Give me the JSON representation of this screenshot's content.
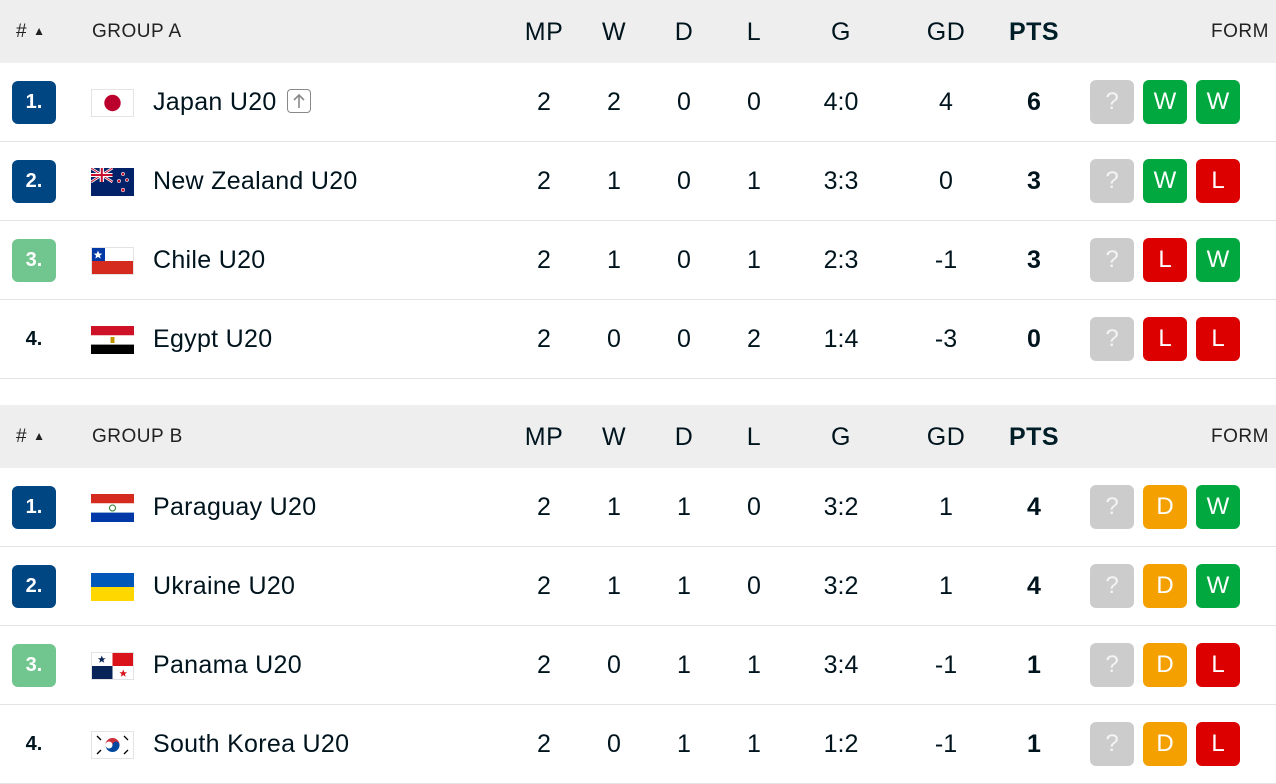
{
  "columns": {
    "rank": "#",
    "mp": "MP",
    "w": "W",
    "d": "D",
    "l": "L",
    "g": "G",
    "gd": "GD",
    "pts": "PTS",
    "form": "FORM"
  },
  "groups": [
    {
      "title": "GROUP A",
      "rows": [
        {
          "rank": "1.",
          "team": "Japan U20",
          "flag": "flag-japan",
          "mp": "2",
          "w": "2",
          "d": "0",
          "l": "0",
          "g": "4:0",
          "gd": "4",
          "pts": "6",
          "form": [
            "?",
            "W",
            "W"
          ],
          "rank_color": "#004682",
          "promoted_icon": "arrow-up-icon"
        },
        {
          "rank": "2.",
          "team": "New Zealand U20",
          "flag": "flag-new-zealand",
          "mp": "2",
          "w": "1",
          "d": "0",
          "l": "1",
          "g": "3:3",
          "gd": "0",
          "pts": "3",
          "form": [
            "?",
            "W",
            "L"
          ],
          "rank_color": "#004682"
        },
        {
          "rank": "3.",
          "team": "Chile U20",
          "flag": "flag-chile",
          "mp": "2",
          "w": "1",
          "d": "0",
          "l": "1",
          "g": "2:3",
          "gd": "-1",
          "pts": "3",
          "form": [
            "?",
            "L",
            "W"
          ],
          "rank_color": "#71c58f"
        },
        {
          "rank": "4.",
          "team": "Egypt U20",
          "flag": "flag-egypt",
          "mp": "2",
          "w": "0",
          "d": "0",
          "l": "2",
          "g": "1:4",
          "gd": "-3",
          "pts": "0",
          "form": [
            "?",
            "L",
            "L"
          ],
          "rank_color": ""
        }
      ]
    },
    {
      "title": "GROUP B",
      "rows": [
        {
          "rank": "1.",
          "team": "Paraguay U20",
          "flag": "flag-paraguay",
          "mp": "2",
          "w": "1",
          "d": "1",
          "l": "0",
          "g": "3:2",
          "gd": "1",
          "pts": "4",
          "form": [
            "?",
            "D",
            "W"
          ],
          "rank_color": "#004682"
        },
        {
          "rank": "2.",
          "team": "Ukraine U20",
          "flag": "flag-ukraine",
          "mp": "2",
          "w": "1",
          "d": "1",
          "l": "0",
          "g": "3:2",
          "gd": "1",
          "pts": "4",
          "form": [
            "?",
            "D",
            "W"
          ],
          "rank_color": "#004682"
        },
        {
          "rank": "3.",
          "team": "Panama U20",
          "flag": "flag-panama",
          "mp": "2",
          "w": "0",
          "d": "1",
          "l": "1",
          "g": "3:4",
          "gd": "-1",
          "pts": "1",
          "form": [
            "?",
            "D",
            "L"
          ],
          "rank_color": "#71c58f"
        },
        {
          "rank": "4.",
          "team": "South Korea U20",
          "flag": "flag-south-korea",
          "mp": "2",
          "w": "0",
          "d": "1",
          "l": "1",
          "g": "1:2",
          "gd": "-1",
          "pts": "1",
          "form": [
            "?",
            "D",
            "L"
          ],
          "rank_color": ""
        }
      ]
    }
  ],
  "colors": {
    "win": "#00a83f",
    "loss": "#dc0000",
    "draw": "#f3a000",
    "unknown": "#cccccc",
    "qualify_primary": "#004682",
    "qualify_secondary": "#71c58f",
    "header_bg": "#eeeeee"
  }
}
